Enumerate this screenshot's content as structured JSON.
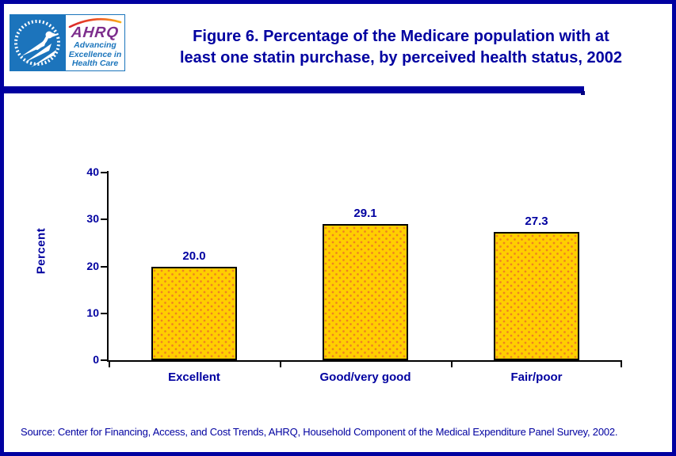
{
  "header": {
    "title": "Figure 6. Percentage of the Medicare population with at least one statin purchase, by perceived health status, 2002",
    "title_lines": [
      "Figure 6. Percentage of the Medicare population with at",
      "least one statin purchase, by perceived health status, 2002"
    ],
    "logo": {
      "hhs_seal": "department-of-health-and-human-services-seal",
      "ahrq_acronym": "AHRQ",
      "tagline_lines": [
        "Advancing",
        "Excellence in",
        "Health Care"
      ]
    }
  },
  "chart_data": {
    "type": "bar",
    "categories": [
      "Excellent",
      "Good/very good",
      "Fair/poor"
    ],
    "values": [
      20.0,
      29.1,
      27.3
    ],
    "value_labels": [
      "20.0",
      "29.1",
      "27.3"
    ],
    "title": "",
    "xlabel": "",
    "ylabel": "Percent",
    "ylim": [
      0,
      40
    ],
    "yticks": [
      0,
      10,
      20,
      30,
      40
    ],
    "grid": false,
    "legend": "none",
    "bar_fill_color": "#FFCE00",
    "bar_dot_color": "#EE8222",
    "bar_border_color": "#000000",
    "text_color": "#0000A0"
  },
  "footer": {
    "source": "Source: Center for Financing, Access, and Cost Trends, AHRQ, Household Component of the Medical Expenditure Panel Survey, 2002."
  },
  "colors": {
    "navy": "#0000A0",
    "hhs_blue": "#1C74BC",
    "ahrq_purple": "#7D2E8D",
    "arc_red": "#D9252B",
    "arc_yellow": "#F9B21A"
  }
}
